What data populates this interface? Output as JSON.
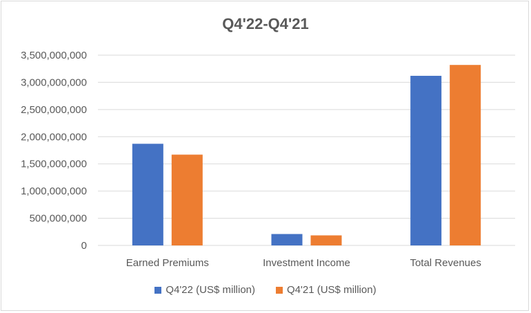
{
  "chart_data": {
    "type": "bar",
    "title": "Q4'22-Q4'21",
    "categories": [
      "Earned Premiums",
      "Investment Income",
      "Total Revenues"
    ],
    "series": [
      {
        "name": "Q4'22 (US$ million)",
        "color": "#4472c4",
        "values": [
          1870000000,
          210000000,
          3120000000
        ]
      },
      {
        "name": "Q4'21 (US$ million)",
        "color": "#ed7d31",
        "values": [
          1670000000,
          185000000,
          3320000000
        ]
      }
    ],
    "yticks": [
      "0",
      "500,000,000",
      "1,000,000,000",
      "1,500,000,000",
      "2,000,000,000",
      "2,500,000,000",
      "3,000,000,000",
      "3,500,000,000"
    ],
    "ylim": [
      0,
      3500000000
    ],
    "grid": true,
    "legend_position": "bottom"
  }
}
